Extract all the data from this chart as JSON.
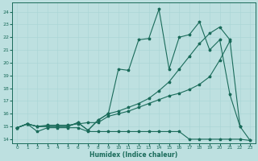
{
  "xlabel": "Humidex (Indice chaleur)",
  "background_color": "#bde0e0",
  "line_color": "#1a6b5a",
  "xlim": [
    -0.5,
    23.5
  ],
  "ylim": [
    13.7,
    24.7
  ],
  "xticks": [
    0,
    1,
    2,
    3,
    4,
    5,
    6,
    7,
    8,
    9,
    10,
    11,
    12,
    13,
    14,
    15,
    16,
    17,
    18,
    19,
    20,
    21,
    22,
    23
  ],
  "yticks": [
    14,
    15,
    16,
    17,
    18,
    19,
    20,
    21,
    22,
    23,
    24
  ],
  "series": [
    {
      "x": [
        0,
        1,
        2,
        3,
        4,
        5,
        6,
        7,
        8,
        9,
        10,
        11,
        12,
        13,
        14,
        15,
        16,
        17,
        18,
        19,
        20,
        21,
        22,
        23
      ],
      "y": [
        14.9,
        15.2,
        14.6,
        14.9,
        14.9,
        14.9,
        14.9,
        14.6,
        14.6,
        14.6,
        14.6,
        14.6,
        14.6,
        14.6,
        14.6,
        14.6,
        14.6,
        14.0,
        14.0,
        14.0,
        14.0,
        14.0,
        14.0,
        13.9
      ]
    },
    {
      "x": [
        0,
        1,
        2,
        3,
        4,
        5,
        6,
        7,
        8,
        9,
        10,
        11,
        12,
        13,
        14,
        15,
        16,
        17,
        18,
        19,
        20,
        21
      ],
      "y": [
        14.9,
        15.2,
        15.0,
        15.1,
        15.1,
        15.1,
        15.2,
        15.3,
        15.3,
        15.8,
        16.0,
        16.2,
        16.5,
        16.8,
        17.1,
        17.4,
        17.6,
        17.9,
        18.3,
        18.9,
        20.2,
        21.7
      ]
    },
    {
      "x": [
        0,
        1,
        2,
        3,
        4,
        5,
        6,
        7,
        8,
        9,
        10,
        11,
        12,
        13,
        14,
        15,
        16,
        17,
        18,
        19,
        20,
        21,
        22
      ],
      "y": [
        14.9,
        15.2,
        15.0,
        15.0,
        15.0,
        15.0,
        15.3,
        14.7,
        15.5,
        16.0,
        16.2,
        16.5,
        16.8,
        17.2,
        17.8,
        18.5,
        19.5,
        20.5,
        21.5,
        22.3,
        22.8,
        21.8,
        15.0
      ]
    },
    {
      "x": [
        0,
        1,
        2,
        3,
        4,
        5,
        6,
        7,
        8,
        9,
        10,
        11,
        12,
        13,
        14,
        15,
        16,
        17,
        18,
        19,
        20,
        21,
        22,
        23
      ],
      "y": [
        14.9,
        15.2,
        15.0,
        15.0,
        15.0,
        15.0,
        15.3,
        14.7,
        15.5,
        16.0,
        19.5,
        19.4,
        21.8,
        21.9,
        24.2,
        19.5,
        22.0,
        22.2,
        23.2,
        21.0,
        21.8,
        17.5,
        15.0,
        13.9
      ]
    }
  ],
  "grid_color": "#a8d4d4",
  "markersize": 2.5,
  "linewidth": 0.8
}
